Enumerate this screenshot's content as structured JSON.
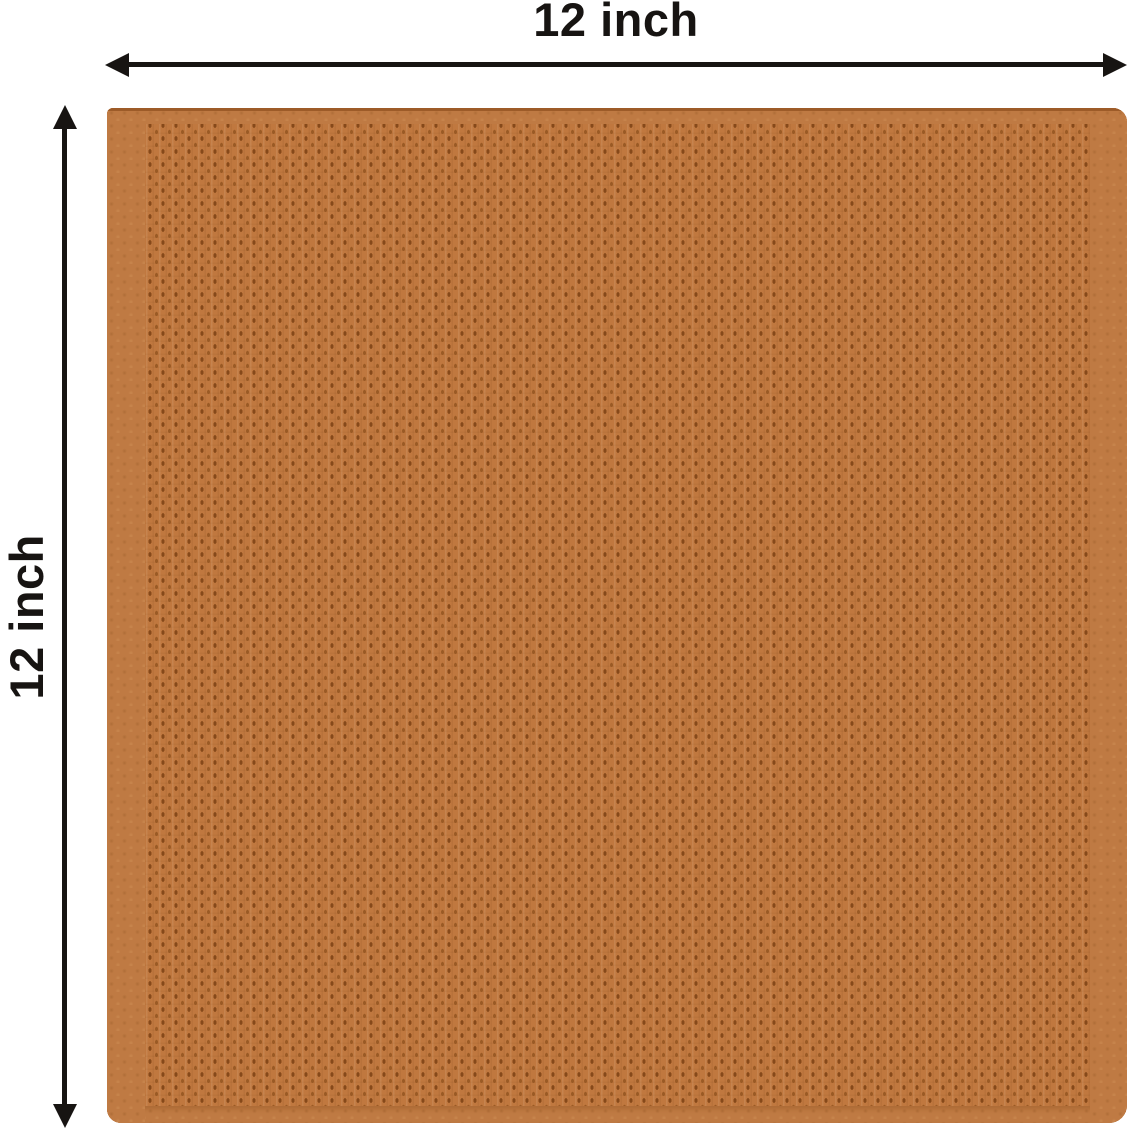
{
  "diagram": {
    "description": "Orange waffle-weave towel swatch shown flat with width and height dimension arrows",
    "width_dimension": {
      "label": "12 inch"
    },
    "height_dimension": {
      "label": "12 inch"
    }
  },
  "colors": {
    "ink": "#171412",
    "background": "#ffffff",
    "towel_base": "#c0783f",
    "towel_dot_dark": "#86491a",
    "towel_dot_mid": "#9a5a25",
    "towel_hem": "#bf7a43",
    "towel_seam_line": "rgba(139,76,26,0.65)"
  }
}
